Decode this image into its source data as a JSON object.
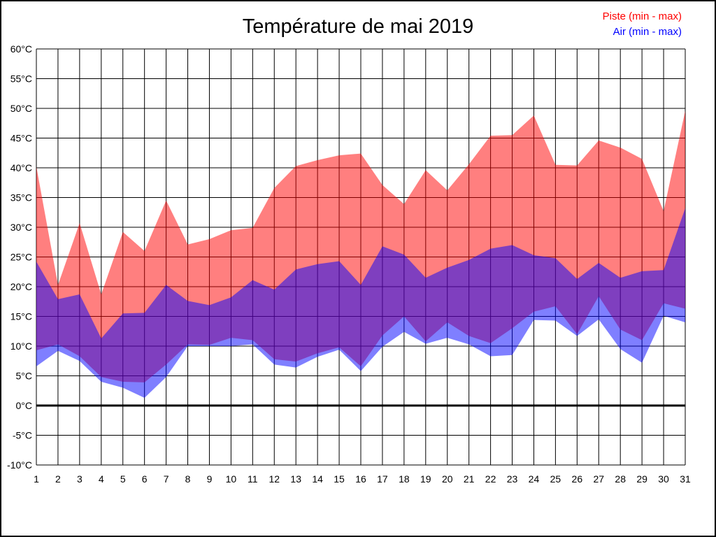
{
  "figure": {
    "title": "Température de mai 2019",
    "legend": [
      {
        "label": "Piste (min - max)",
        "color": "#ff0000"
      },
      {
        "label": "Air (min - max)",
        "color": "#0000ff"
      }
    ]
  },
  "chart_data": {
    "type": "area",
    "subtype": "min-max-bands",
    "title": "Température de mai 2019",
    "xlabel": "",
    "ylabel": "",
    "y_unit": "°C",
    "ylim": [
      -10,
      60
    ],
    "y_tick_step": 5,
    "grid": true,
    "legend_position": "top-right",
    "zero_line": {
      "value": 0,
      "stroke_width": 3,
      "color": "#000000"
    },
    "x": [
      1,
      2,
      3,
      4,
      5,
      6,
      7,
      8,
      9,
      10,
      11,
      12,
      13,
      14,
      15,
      16,
      17,
      18,
      19,
      20,
      21,
      22,
      23,
      24,
      25,
      26,
      27,
      28,
      29,
      30,
      31
    ],
    "x_tick_labels": [
      "1",
      "2",
      "3",
      "4",
      "5",
      "6",
      "7",
      "8",
      "9",
      "10",
      "11",
      "12",
      "13",
      "14",
      "15",
      "16",
      "17",
      "18",
      "19",
      "20",
      "21",
      "22",
      "23",
      "24",
      "25",
      "26",
      "27",
      "28",
      "29",
      "30",
      "31"
    ],
    "y_tick_labels": [
      "60°C",
      "55°C",
      "50°C",
      "45°C",
      "40°C",
      "35°C",
      "30°C",
      "25°C",
      "20°C",
      "15°C",
      "10°C",
      "5°C",
      "0°C",
      "-5°C",
      "-10°C"
    ],
    "series": [
      {
        "name": "Piste (min - max)",
        "role": "band",
        "color": "#ff0000",
        "fill_opacity": 0.5,
        "max": [
          40.2,
          20.3,
          30.7,
          18.7,
          29.2,
          26.0,
          34.5,
          27.1,
          28.0,
          29.5,
          29.9,
          36.6,
          40.3,
          41.3,
          42.1,
          42.4,
          37.1,
          33.9,
          39.6,
          36.2,
          40.6,
          45.4,
          45.5,
          48.8,
          40.5,
          40.4,
          44.6,
          43.4,
          41.5,
          32.7,
          49.6
        ],
        "min": [
          9.3,
          10.3,
          8.3,
          4.8,
          4.0,
          3.9,
          6.9,
          10.3,
          10.2,
          11.4,
          11.0,
          7.8,
          7.4,
          8.8,
          9.8,
          6.6,
          11.8,
          15.0,
          10.8,
          14.0,
          11.7,
          10.5,
          13.0,
          15.8,
          16.7,
          12.0,
          18.4,
          12.8,
          11.0,
          17.2,
          16.3
        ]
      },
      {
        "name": "Air (min - max)",
        "role": "band",
        "color": "#0000ff",
        "fill_opacity": 0.5,
        "max": [
          24.2,
          17.9,
          18.7,
          11.3,
          15.5,
          15.6,
          20.3,
          17.6,
          16.9,
          18.2,
          21.1,
          19.5,
          22.9,
          23.8,
          24.3,
          20.3,
          26.8,
          25.4,
          21.5,
          23.2,
          24.5,
          26.4,
          27.0,
          25.3,
          24.8,
          21.3,
          24.0,
          21.5,
          22.6,
          22.8,
          33.2
        ],
        "min": [
          6.6,
          9.2,
          7.5,
          4.0,
          3.0,
          1.3,
          4.8,
          10.0,
          10.0,
          10.0,
          10.3,
          6.9,
          6.4,
          8.2,
          9.4,
          5.8,
          9.9,
          12.4,
          10.4,
          11.4,
          10.3,
          8.3,
          8.5,
          14.4,
          14.3,
          11.7,
          14.5,
          9.5,
          7.2,
          15.1,
          14.0
        ]
      }
    ],
    "observed_overlap_colors": {
      "piste_only": "#ff8080",
      "air_only": "#8080ff",
      "overlap": "#8040bf"
    }
  }
}
